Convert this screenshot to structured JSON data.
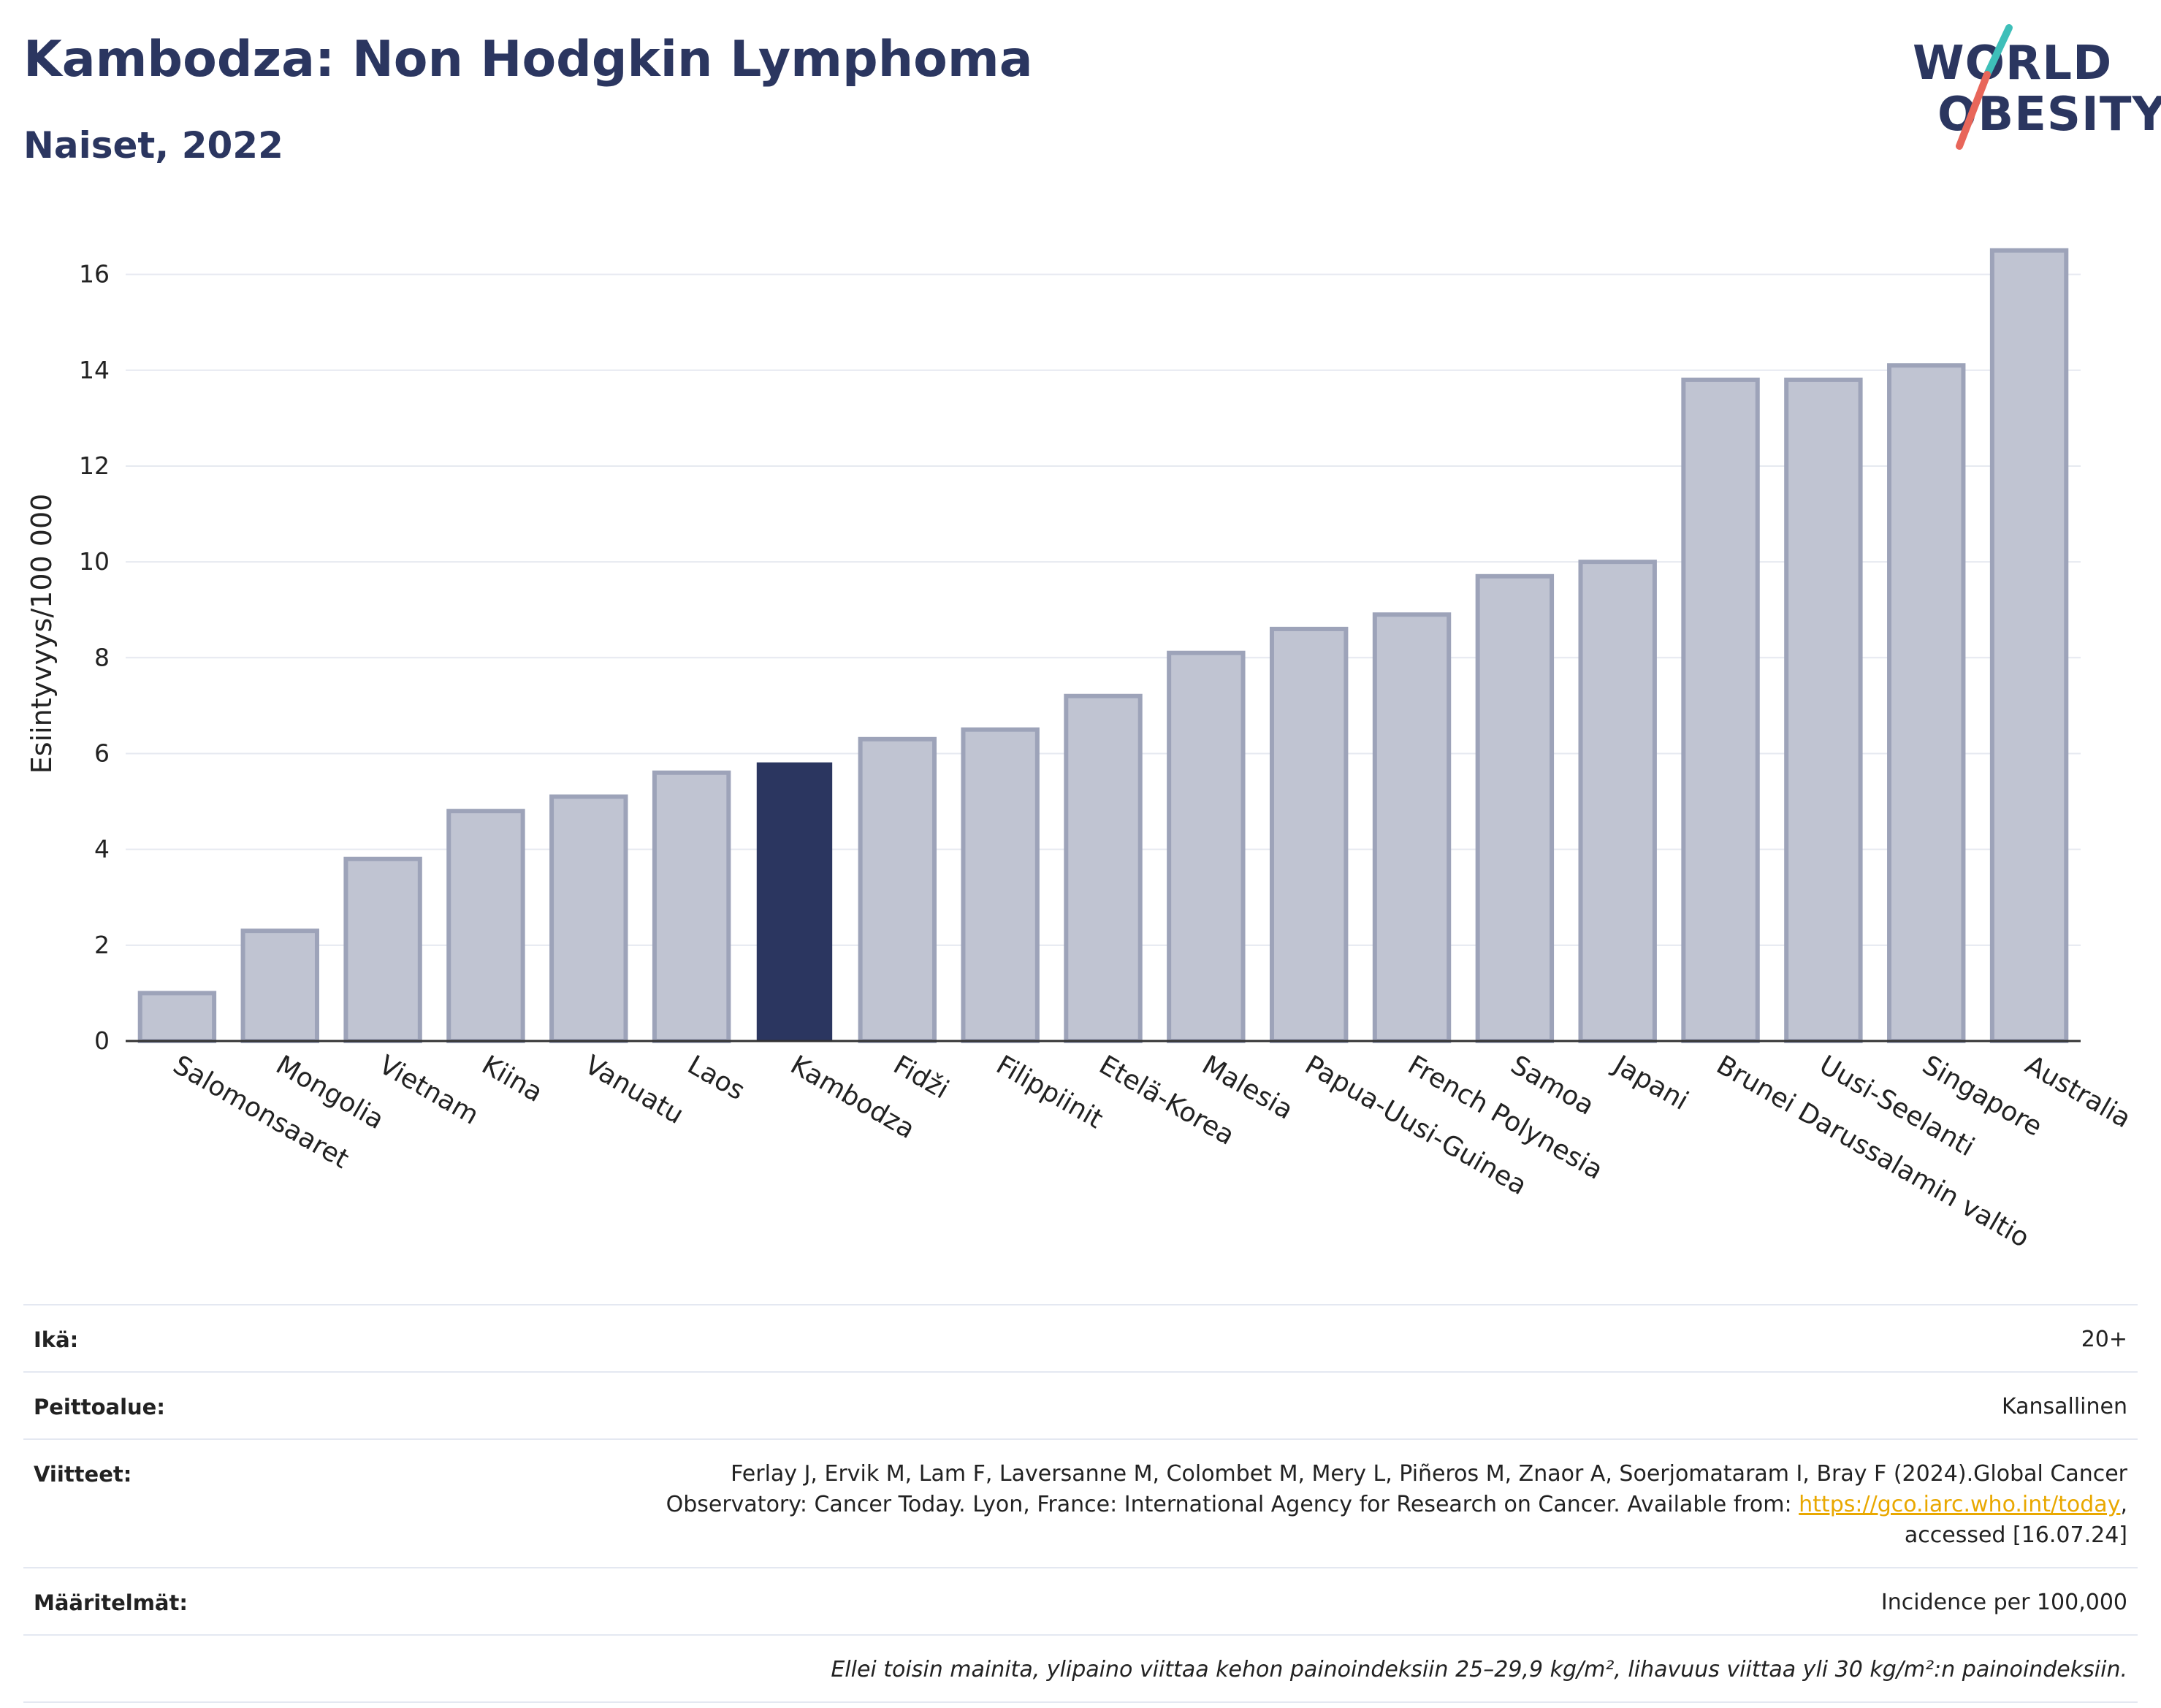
{
  "title": "Kambodza: Non Hodgkin Lymphoma",
  "subtitle": "Naiset, 2022",
  "logo": {
    "line1": "WORLD",
    "line2": "OBESITY"
  },
  "colors": {
    "highlight": "#2b3660",
    "bar": "#c0c4d2",
    "bar_stroke": "#9da3b9",
    "accent_teal": "#3ebfb9",
    "accent_red": "#e8665a"
  },
  "chart_data": {
    "type": "bar",
    "ylabel": "Esiintyvyys/100 000",
    "xlabel": "",
    "ylim": [
      0,
      17
    ],
    "yticks": [
      0,
      2,
      4,
      6,
      8,
      10,
      12,
      14,
      16
    ],
    "grid": true,
    "highlight": "Kambodza",
    "categories": [
      "Salomonsaaret",
      "Mongolia",
      "Vietnam",
      "Kiina",
      "Vanuatu",
      "Laos",
      "Kambodza",
      "Fidži",
      "Filippiinit",
      "Etelä-Korea",
      "Malesia",
      "Papua-Uusi-Guinea",
      "French Polynesia",
      "Samoa",
      "Japani",
      "Brunei Darussalamin valtio",
      "Uusi-Seelanti",
      "Singapore",
      "Australia"
    ],
    "values": [
      1.0,
      2.3,
      3.8,
      4.8,
      5.1,
      5.6,
      5.8,
      6.3,
      6.5,
      7.2,
      8.1,
      8.6,
      8.9,
      9.7,
      10.0,
      13.8,
      13.8,
      14.1,
      16.5
    ]
  },
  "info": {
    "age_label": "Ikä:",
    "age_value": "20+",
    "coverage_label": "Peittoalue:",
    "coverage_value": "Kansallinen",
    "refs_label": "Viitteet:",
    "refs_line1": "Ferlay J, Ervik M, Lam F, Laversanne M, Colombet M, Mery L, Piñeros M, Znaor A, Soerjomataram I, Bray F (2024).Global Cancer",
    "refs_line2_pre": "Observatory: Cancer Today. Lyon, France: International Agency for Research on Cancer. Available from: ",
    "refs_link": "https://gco.iarc.who.int/today",
    "refs_line2_post": ",",
    "refs_line3": "accessed [16.07.24]",
    "defs_label": "Määritelmät:",
    "defs_value": "Incidence per 100,000",
    "note": "Ellei toisin mainita, ylipaino viittaa kehon painoindeksiin 25–29,9 kg/m², lihavuus viittaa yli 30 kg/m²:n painoindeksiin."
  }
}
